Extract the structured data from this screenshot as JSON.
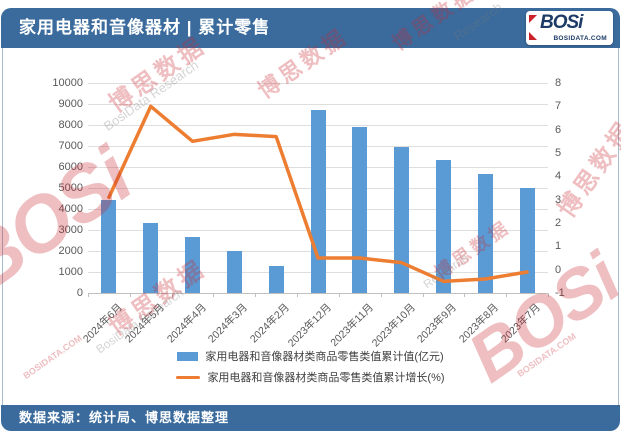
{
  "page": {
    "title": "家用电器和音像器材 | 累计零售",
    "source_note": "数据来源：统计局、博思数据整理"
  },
  "logo": {
    "name": "BOSi",
    "url_text": "BOSIDATA.COM"
  },
  "colors": {
    "header_bg": "#3a6b9c",
    "bar": "#5B9BD5",
    "line": "#ED7D31",
    "gridline": "#dedede",
    "axis_text": "#595959",
    "logo_navy": "#1d3b66",
    "logo_red": "#cc2229"
  },
  "chart_data": {
    "type": "bar",
    "subtype": "combo-bar-line",
    "categories": [
      "2024年6月",
      "2024年5月",
      "2024年4月",
      "2024年3月",
      "2024年2月",
      "2023年12月",
      "2023年11月",
      "2023年10月",
      "2023年9月",
      "2023年8月",
      "2023年7月"
    ],
    "series": [
      {
        "name": "家用电器和音像器材类商品零售类值累计值(亿元)",
        "type": "bar",
        "axis": "left",
        "color": "#5B9BD5",
        "values": [
          4450,
          3350,
          2650,
          2000,
          1280,
          8700,
          7900,
          6950,
          6330,
          5660,
          5000
        ]
      },
      {
        "name": "家用电器和音像器材类商品零售类值累计增长(%)",
        "type": "line",
        "axis": "right",
        "color": "#ED7D31",
        "values": [
          3.1,
          7.0,
          5.5,
          5.8,
          5.7,
          0.5,
          0.5,
          0.3,
          -0.5,
          -0.4,
          -0.1
        ]
      }
    ],
    "left_axis": {
      "min": 0,
      "max": 10000,
      "step": 1000
    },
    "right_axis": {
      "min": -1,
      "max": 8,
      "step": 1
    },
    "grid": true,
    "legend_position": "bottom"
  },
  "watermarks": [
    {
      "text": "博思数据",
      "cls": "w1 red cjk"
    },
    {
      "text": "BosiData Research",
      "cls": "w2 gray"
    },
    {
      "text": "博思数据",
      "cls": "w3 red cjk"
    },
    {
      "text": "博思数据",
      "cls": "w4 red cjk"
    },
    {
      "text": "Research",
      "cls": "w5 gray"
    },
    {
      "text": "BOSi",
      "cls": "w6 red big"
    },
    {
      "text": "BOSIDATA.COM",
      "cls": "w7 red"
    },
    {
      "text": "博思数据",
      "cls": "w8 red cjk"
    },
    {
      "text": "BosiData Research",
      "cls": "w9 gray"
    },
    {
      "text": "博思数据",
      "cls": "w10 red cjk"
    },
    {
      "text": "博思数据",
      "cls": "w11 red cjk"
    },
    {
      "text": "Research",
      "cls": "w12 gray"
    },
    {
      "text": "BOSi",
      "cls": "w13 red big"
    },
    {
      "text": "BOSIDATA.COM",
      "cls": "w14 red"
    }
  ]
}
